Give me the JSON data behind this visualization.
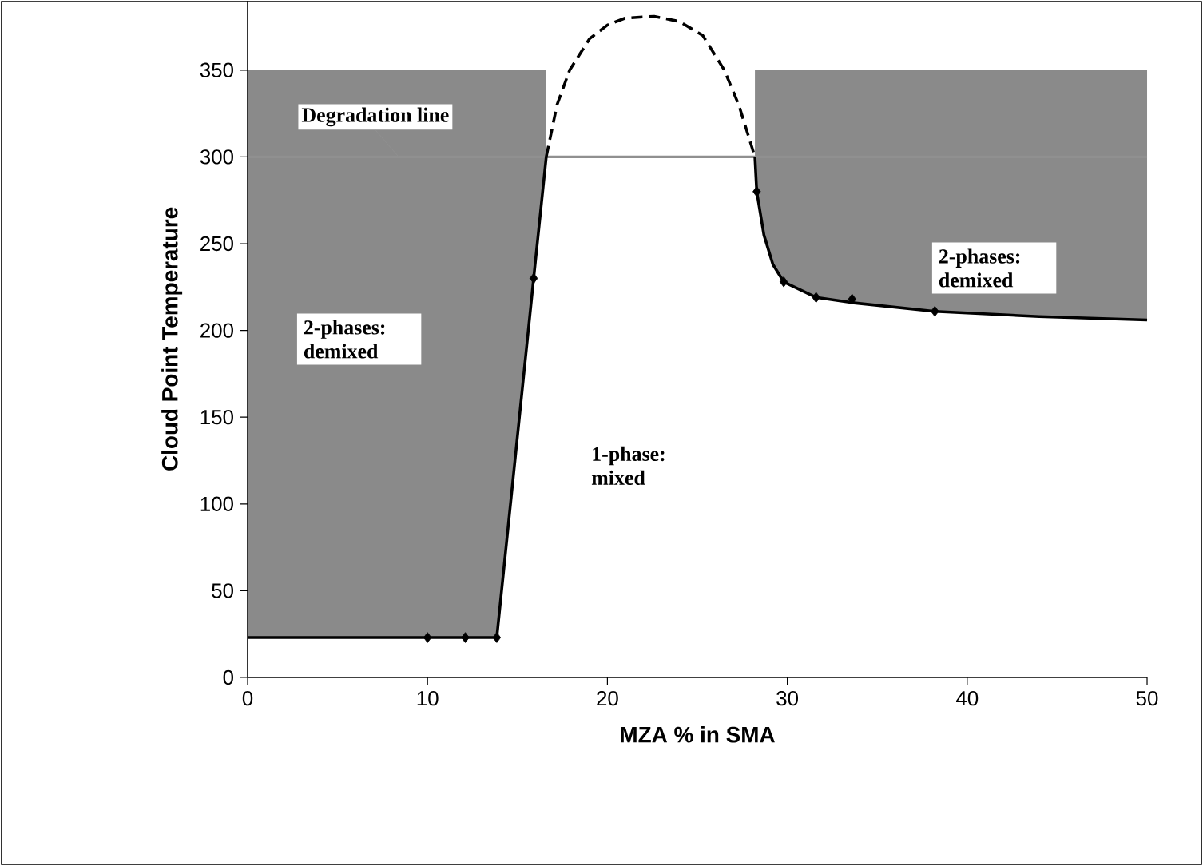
{
  "chart_data": {
    "type": "line",
    "xlabel": "MZA % in SMA",
    "ylabel": "Cloud Point Temperature",
    "xlim": [
      0,
      50
    ],
    "ylim": [
      0,
      390
    ],
    "xticks": [
      0,
      10,
      20,
      30,
      40,
      50
    ],
    "yticks": [
      0,
      50,
      100,
      150,
      200,
      250,
      300,
      350
    ],
    "ref_lines": [
      {
        "axis": "y",
        "value": 300,
        "label": "Degradation line",
        "color": "#909090"
      }
    ],
    "series": [
      {
        "color": "#000000",
        "line_style": "solid",
        "x": [
          0,
          10,
          12.1,
          13.85,
          15.9,
          16.6
        ],
        "values": [
          23,
          23,
          23,
          23,
          230,
          300
        ],
        "lower": [
          23,
          23,
          23,
          23,
          230,
          300
        ],
        "upper": [
          350,
          350,
          350,
          350,
          350,
          350
        ]
      },
      {
        "color": "#000000",
        "line_style": "dashed",
        "x": [
          16.6,
          17.2,
          17.9,
          19,
          20,
          21,
          22.6,
          24,
          25.3,
          26.5,
          27.3,
          28.2
        ],
        "values": [
          300,
          330,
          350,
          368,
          376,
          380,
          381,
          378,
          370,
          350,
          330,
          300
        ]
      },
      {
        "color": "#000000",
        "line_style": "solid",
        "x": [
          28.2,
          28.3,
          28.7,
          29.2,
          29.8,
          31.6,
          33.6,
          38.2,
          44,
          50
        ],
        "values": [
          300,
          280,
          255,
          238,
          228,
          219,
          216,
          211,
          208,
          206
        ],
        "lower": [
          300,
          280,
          255,
          238,
          228,
          219,
          216,
          211,
          208,
          206
        ],
        "upper": [
          350,
          350,
          350,
          350,
          350,
          350,
          350,
          350,
          350,
          350
        ]
      },
      {
        "type": "scatter",
        "color": "#000000",
        "marker": "diamond",
        "x": [
          10,
          12.1,
          13.85,
          15.9,
          28.3,
          29.8,
          31.6,
          33.6,
          38.2
        ],
        "values": [
          23,
          23,
          23,
          230,
          280,
          228,
          219,
          218,
          211
        ]
      }
    ],
    "annotations": [
      "2-phases: demixed",
      "2-phases: demixed",
      "1-phase: mixed"
    ]
  }
}
